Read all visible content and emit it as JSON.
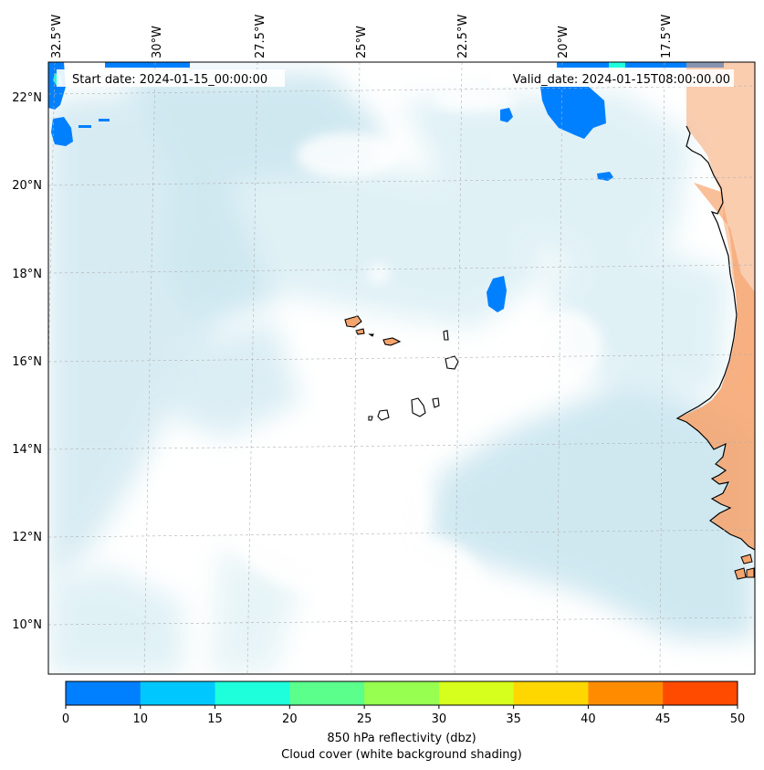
{
  "map": {
    "start_date": "Start date: 2024-01-15_00:00:00",
    "valid_date": "Valid_date: 2024-01-15T08:00:00.00",
    "lon_labels": [
      "32.5°W",
      "30°W",
      "27.5°W",
      "25°W",
      "22.5°W",
      "20°W",
      "17.5°W"
    ],
    "lat_labels": [
      "22°N",
      "20°N",
      "18°N",
      "16°N",
      "14°N",
      "12°N",
      "10°N"
    ],
    "colors": {
      "land": "#f6a46d",
      "cloud": "#c8e6ef",
      "coastline": "#000000",
      "grid": "#b0b0b0"
    }
  },
  "colorbar": {
    "ticks": [
      "0",
      "10",
      "15",
      "20",
      "25",
      "30",
      "35",
      "40",
      "45",
      "50"
    ],
    "colors": [
      "#0080ff",
      "#00c8ff",
      "#1effdc",
      "#5aff8c",
      "#96ff50",
      "#d7ff1e",
      "#ffd700",
      "#ff8c00",
      "#ff4b00"
    ],
    "label_line1": "850 hPa reflectivity (dbz)",
    "label_line2": "Cloud cover (white background shading)"
  }
}
